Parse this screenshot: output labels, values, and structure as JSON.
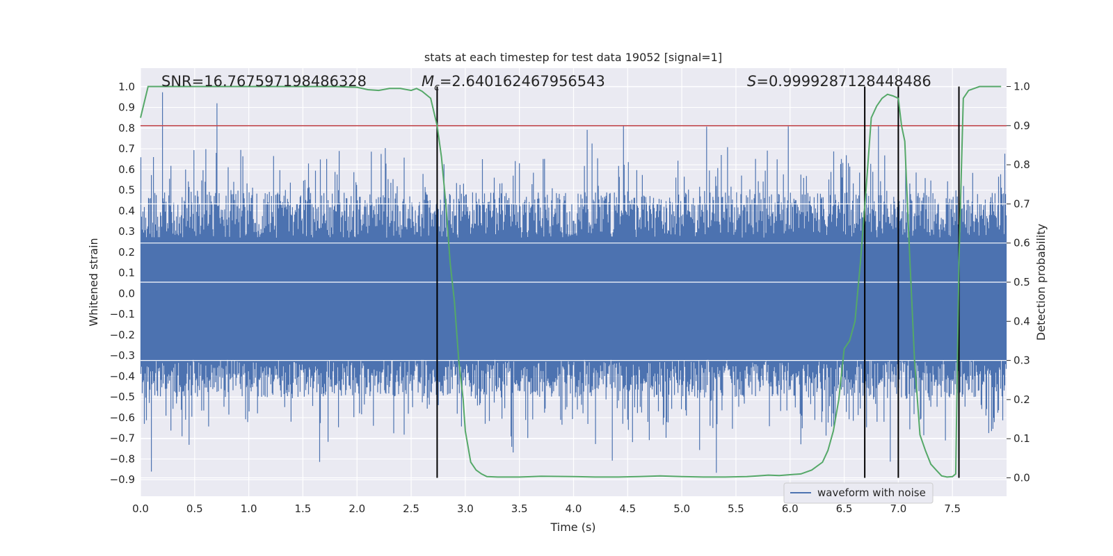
{
  "chart_data": {
    "type": "line",
    "title": "stats at each timestep for test data 19052 [signal=1]",
    "xlabel": "Time (s)",
    "ylabel": "Whitened strain",
    "y2label": "Detection probability",
    "xlim": [
      0.0,
      8.0
    ],
    "ylim": [
      -0.98,
      1.09
    ],
    "y2lim": [
      -0.047,
      1.047
    ],
    "xticks": [
      0.0,
      0.5,
      1.0,
      1.5,
      2.0,
      2.5,
      3.0,
      3.5,
      4.0,
      4.5,
      5.0,
      5.5,
      6.0,
      6.5,
      7.0,
      7.5
    ],
    "yticks": [
      -0.9,
      -0.8,
      -0.7,
      -0.6,
      -0.5,
      -0.4,
      -0.3,
      -0.2,
      -0.1,
      0.0,
      0.1,
      0.2,
      0.3,
      0.4,
      0.5,
      0.6,
      0.7,
      0.8,
      0.9,
      1.0
    ],
    "y2ticks": [
      0.0,
      0.1,
      0.2,
      0.3,
      0.4,
      0.5,
      0.6,
      0.7,
      0.8,
      0.9,
      1.0
    ],
    "grid": true,
    "legend_placement": "lower-right",
    "annotations": {
      "snr": "SNR=16.767597198486328",
      "mc_prefix": "M",
      "mc_sub": "c",
      "mc_value": "=2.640162467956543",
      "s_prefix": "S",
      "s_value": "=0.9999287128448486"
    },
    "threshold": {
      "axis": "right",
      "value": 0.9,
      "color": "#c44e52"
    },
    "vlines": [
      2.74,
      6.69,
      7.0,
      7.56
    ],
    "vline_range_right": [
      0.0,
      1.0
    ],
    "series": [
      {
        "name": "waveform with noise",
        "axis": "left",
        "color": "#4c72b0",
        "envelope": {
          "band_upper": 0.27,
          "band_lower": -0.32,
          "upper_peaks_max": 1.0,
          "lower_peaks_min": -0.9,
          "noise_seed": 19052
        }
      },
      {
        "name": "",
        "axis": "right",
        "color": "#55a868",
        "x": [
          0.0,
          0.07,
          0.2,
          0.5,
          1.0,
          1.5,
          1.8,
          2.0,
          2.1,
          2.2,
          2.3,
          2.4,
          2.5,
          2.55,
          2.6,
          2.68,
          2.74,
          2.78,
          2.82,
          2.86,
          2.9,
          2.94,
          2.98,
          3.0,
          3.05,
          3.1,
          3.15,
          3.2,
          3.3,
          3.5,
          3.7,
          4.0,
          4.2,
          4.4,
          4.6,
          4.8,
          5.0,
          5.2,
          5.4,
          5.6,
          5.7,
          5.8,
          5.9,
          6.0,
          6.1,
          6.2,
          6.3,
          6.35,
          6.4,
          6.45,
          6.5,
          6.55,
          6.6,
          6.65,
          6.7,
          6.75,
          6.8,
          6.85,
          6.9,
          6.95,
          7.0,
          7.03,
          7.06,
          7.1,
          7.15,
          7.2,
          7.25,
          7.3,
          7.35,
          7.4,
          7.45,
          7.5,
          7.53,
          7.56,
          7.6,
          7.65,
          7.7,
          7.75,
          7.8,
          7.9,
          7.95
        ],
        "values": [
          0.92,
          1.0,
          1.0,
          1.0,
          1.0,
          1.0,
          1.0,
          0.998,
          0.992,
          0.99,
          0.995,
          0.995,
          0.99,
          0.995,
          0.988,
          0.97,
          0.9,
          0.82,
          0.7,
          0.55,
          0.45,
          0.3,
          0.2,
          0.12,
          0.04,
          0.02,
          0.01,
          0.003,
          0.002,
          0.002,
          0.004,
          0.003,
          0.002,
          0.002,
          0.003,
          0.005,
          0.003,
          0.002,
          0.002,
          0.003,
          0.005,
          0.007,
          0.006,
          0.008,
          0.01,
          0.02,
          0.04,
          0.07,
          0.12,
          0.2,
          0.33,
          0.35,
          0.4,
          0.55,
          0.73,
          0.92,
          0.95,
          0.97,
          0.98,
          0.976,
          0.97,
          0.9,
          0.86,
          0.6,
          0.3,
          0.11,
          0.07,
          0.035,
          0.02,
          0.005,
          0.002,
          0.003,
          0.01,
          0.55,
          0.97,
          0.99,
          0.995,
          1.0,
          1.0,
          1.0,
          1.0
        ]
      }
    ]
  }
}
